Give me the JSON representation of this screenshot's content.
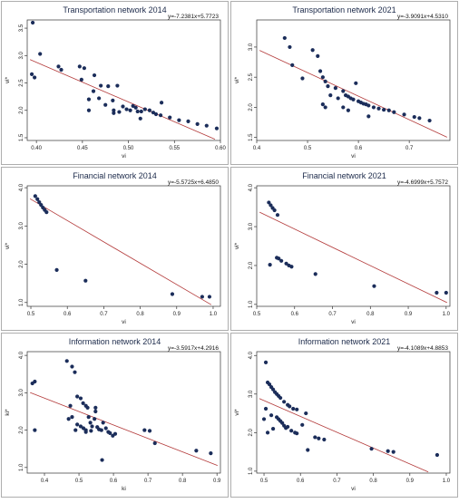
{
  "chart_data": [
    {
      "type": "scatter",
      "title": "Transportation network 2014",
      "equation": "y=-7.2381x+5.7723",
      "xlabel": "vi",
      "ylabel": "vi*",
      "xlim": [
        0.39,
        0.6
      ],
      "ylim": [
        1.45,
        3.65
      ],
      "xticks": [
        "0.40",
        "0.45",
        "0.50",
        "0.55",
        "0.60"
      ],
      "yticks": [
        "1.5",
        "2.0",
        "2.5",
        "3.0",
        "3.5"
      ],
      "fit": {
        "slope": -7.2381,
        "intercept": 5.7723
      },
      "points": [
        [
          0.396,
          3.6
        ],
        [
          0.404,
          3.03
        ],
        [
          0.395,
          2.66
        ],
        [
          0.398,
          2.6
        ],
        [
          0.424,
          2.8
        ],
        [
          0.427,
          2.74
        ],
        [
          0.447,
          2.8
        ],
        [
          0.452,
          2.77
        ],
        [
          0.449,
          2.56
        ],
        [
          0.463,
          2.64
        ],
        [
          0.47,
          2.45
        ],
        [
          0.478,
          2.44
        ],
        [
          0.462,
          2.35
        ],
        [
          0.457,
          2.2
        ],
        [
          0.468,
          2.22
        ],
        [
          0.475,
          2.1
        ],
        [
          0.483,
          2.18
        ],
        [
          0.488,
          2.45
        ],
        [
          0.484,
          2.0
        ],
        [
          0.484,
          1.95
        ],
        [
          0.494,
          2.07
        ],
        [
          0.498,
          2.02
        ],
        [
          0.502,
          2.0
        ],
        [
          0.49,
          1.97
        ],
        [
          0.505,
          2.08
        ],
        [
          0.508,
          2.05
        ],
        [
          0.51,
          1.98
        ],
        [
          0.514,
          1.98
        ],
        [
          0.518,
          2.02
        ],
        [
          0.513,
          1.85
        ],
        [
          0.523,
          2.0
        ],
        [
          0.527,
          1.96
        ],
        [
          0.53,
          1.93
        ],
        [
          0.536,
          2.14
        ],
        [
          0.535,
          1.91
        ],
        [
          0.545,
          1.87
        ],
        [
          0.555,
          1.82
        ],
        [
          0.565,
          1.8
        ],
        [
          0.575,
          1.75
        ],
        [
          0.585,
          1.72
        ],
        [
          0.457,
          2.0
        ],
        [
          0.596,
          1.67
        ]
      ]
    },
    {
      "type": "scatter",
      "title": "Transportation network 2021",
      "equation": "y=-3.9091x+4.5310",
      "xlabel": "vi",
      "ylabel": "vi*",
      "xlim": [
        0.4,
        0.78
      ],
      "ylim": [
        1.45,
        3.45
      ],
      "xticks": [
        "0.4",
        "0.5",
        "0.6",
        "0.7"
      ],
      "yticks": [
        "1.5",
        "2.0",
        "2.5",
        "3.0"
      ],
      "fit": {
        "slope": -3.9091,
        "intercept": 4.531
      },
      "points": [
        [
          0.455,
          3.15
        ],
        [
          0.465,
          3.0
        ],
        [
          0.49,
          2.48
        ],
        [
          0.51,
          2.95
        ],
        [
          0.52,
          2.85
        ],
        [
          0.525,
          2.6
        ],
        [
          0.53,
          2.5
        ],
        [
          0.535,
          2.43
        ],
        [
          0.54,
          2.35
        ],
        [
          0.545,
          2.2
        ],
        [
          0.555,
          2.32
        ],
        [
          0.56,
          2.15
        ],
        [
          0.57,
          2.27
        ],
        [
          0.575,
          2.2
        ],
        [
          0.58,
          2.18
        ],
        [
          0.585,
          2.15
        ],
        [
          0.59,
          2.13
        ],
        [
          0.595,
          2.4
        ],
        [
          0.6,
          2.1
        ],
        [
          0.605,
          2.08
        ],
        [
          0.61,
          2.06
        ],
        [
          0.615,
          2.05
        ],
        [
          0.62,
          2.03
        ],
        [
          0.63,
          2.0
        ],
        [
          0.64,
          1.98
        ],
        [
          0.65,
          1.96
        ],
        [
          0.66,
          1.95
        ],
        [
          0.67,
          1.92
        ],
        [
          0.69,
          1.88
        ],
        [
          0.71,
          1.84
        ],
        [
          0.72,
          1.82
        ],
        [
          0.74,
          1.78
        ],
        [
          0.53,
          2.05
        ],
        [
          0.535,
          2.0
        ],
        [
          0.57,
          2.0
        ],
        [
          0.58,
          1.95
        ],
        [
          0.62,
          1.85
        ],
        [
          0.47,
          2.7
        ]
      ]
    },
    {
      "type": "scatter",
      "title": "Financial network 2014",
      "equation": "y=-5.5725x+6.4850",
      "xlabel": "vi",
      "ylabel": "vi*",
      "xlim": [
        0.49,
        1.02
      ],
      "ylim": [
        0.9,
        4.05
      ],
      "xticks": [
        "0.5",
        "0.6",
        "0.7",
        "0.8",
        "0.9",
        "1.0"
      ],
      "yticks": [
        "1.0",
        "2.0",
        "3.0",
        "4.0"
      ],
      "fit": {
        "slope": -5.5725,
        "intercept": 6.485
      },
      "points": [
        [
          0.512,
          3.78
        ],
        [
          0.518,
          3.7
        ],
        [
          0.523,
          3.62
        ],
        [
          0.528,
          3.55
        ],
        [
          0.533,
          3.48
        ],
        [
          0.538,
          3.42
        ],
        [
          0.543,
          3.36
        ],
        [
          0.571,
          1.85
        ],
        [
          0.65,
          1.57
        ],
        [
          0.888,
          1.22
        ],
        [
          0.97,
          1.15
        ],
        [
          0.99,
          1.15
        ]
      ]
    },
    {
      "type": "scatter",
      "title": "Financial network 2021",
      "equation": "y=-4.6999x+5.7572",
      "xlabel": "vi",
      "ylabel": "vi*",
      "xlim": [
        0.5,
        1.01
      ],
      "ylim": [
        0.95,
        4.05
      ],
      "xticks": [
        "0.5",
        "0.6",
        "0.7",
        "0.8",
        "0.9",
        "1.0"
      ],
      "yticks": [
        "1.0",
        "2.0",
        "3.0",
        "4.0"
      ],
      "fit": {
        "slope": -4.6999,
        "intercept": 5.7572
      },
      "points": [
        [
          0.532,
          3.62
        ],
        [
          0.537,
          3.55
        ],
        [
          0.542,
          3.48
        ],
        [
          0.547,
          3.42
        ],
        [
          0.555,
          3.3
        ],
        [
          0.535,
          2.02
        ],
        [
          0.553,
          2.2
        ],
        [
          0.558,
          2.18
        ],
        [
          0.565,
          2.12
        ],
        [
          0.578,
          2.05
        ],
        [
          0.585,
          2.0
        ],
        [
          0.592,
          1.97
        ],
        [
          0.655,
          1.78
        ],
        [
          0.81,
          1.47
        ],
        [
          0.975,
          1.3
        ],
        [
          1.0,
          1.3
        ]
      ]
    },
    {
      "type": "scatter",
      "title": "Information network 2014",
      "equation": "y=-3.5917x+4.2916",
      "xlabel": "ki",
      "ylabel": "ki*",
      "xlim": [
        0.35,
        0.91
      ],
      "ylim": [
        0.85,
        4.1
      ],
      "xticks": [
        "0.4",
        "0.5",
        "0.6",
        "0.7",
        "0.8",
        "0.9"
      ],
      "yticks": [
        "1.0",
        "2.0",
        "3.0",
        "4.0"
      ],
      "fit": {
        "slope": -3.5917,
        "intercept": 4.2916
      },
      "points": [
        [
          0.365,
          3.25
        ],
        [
          0.372,
          3.3
        ],
        [
          0.372,
          2.0
        ],
        [
          0.465,
          3.85
        ],
        [
          0.48,
          3.7
        ],
        [
          0.488,
          3.55
        ],
        [
          0.495,
          2.9
        ],
        [
          0.505,
          2.85
        ],
        [
          0.512,
          2.72
        ],
        [
          0.52,
          2.65
        ],
        [
          0.525,
          2.6
        ],
        [
          0.475,
          2.65
        ],
        [
          0.47,
          2.3
        ],
        [
          0.48,
          2.35
        ],
        [
          0.495,
          2.15
        ],
        [
          0.505,
          2.1
        ],
        [
          0.513,
          2.05
        ],
        [
          0.52,
          2.0
        ],
        [
          0.528,
          2.35
        ],
        [
          0.533,
          2.2
        ],
        [
          0.538,
          2.1
        ],
        [
          0.545,
          2.3
        ],
        [
          0.548,
          2.5
        ],
        [
          0.553,
          2.08
        ],
        [
          0.558,
          2.02
        ],
        [
          0.565,
          2.0
        ],
        [
          0.57,
          2.2
        ],
        [
          0.578,
          2.05
        ],
        [
          0.585,
          1.95
        ],
        [
          0.59,
          1.92
        ],
        [
          0.598,
          1.85
        ],
        [
          0.605,
          1.9
        ],
        [
          0.49,
          2.0
        ],
        [
          0.52,
          1.95
        ],
        [
          0.535,
          1.98
        ],
        [
          0.567,
          1.2
        ],
        [
          0.69,
          2.0
        ],
        [
          0.705,
          1.98
        ],
        [
          0.72,
          1.65
        ],
        [
          0.84,
          1.45
        ],
        [
          0.882,
          1.38
        ],
        [
          0.548,
          2.6
        ]
      ]
    },
    {
      "type": "scatter",
      "title": "Information network 2021",
      "equation": "y=-4.1089x+4.8853",
      "xlabel": "vi",
      "ylabel": "vi*",
      "xlim": [
        0.48,
        1.01
      ],
      "ylim": [
        0.95,
        4.1
      ],
      "xticks": [
        "0.5",
        "0.6",
        "0.7",
        "0.8",
        "0.9",
        "1.0"
      ],
      "yticks": [
        "1.0",
        "2.0",
        "3.0",
        "4.0"
      ],
      "fit": {
        "slope": -4.1089,
        "intercept": 4.8853
      },
      "points": [
        [
          0.505,
          3.82
        ],
        [
          0.51,
          3.3
        ],
        [
          0.515,
          3.25
        ],
        [
          0.52,
          3.18
        ],
        [
          0.525,
          3.12
        ],
        [
          0.53,
          3.05
        ],
        [
          0.535,
          3.0
        ],
        [
          0.54,
          2.95
        ],
        [
          0.545,
          2.9
        ],
        [
          0.555,
          2.8
        ],
        [
          0.565,
          2.72
        ],
        [
          0.57,
          2.68
        ],
        [
          0.58,
          2.62
        ],
        [
          0.59,
          2.6
        ],
        [
          0.505,
          2.62
        ],
        [
          0.51,
          2.0
        ],
        [
          0.5,
          2.35
        ],
        [
          0.52,
          2.45
        ],
        [
          0.525,
          2.1
        ],
        [
          0.535,
          2.4
        ],
        [
          0.54,
          2.35
        ],
        [
          0.545,
          2.3
        ],
        [
          0.55,
          2.25
        ],
        [
          0.555,
          2.18
        ],
        [
          0.56,
          2.12
        ],
        [
          0.565,
          2.15
        ],
        [
          0.575,
          2.05
        ],
        [
          0.585,
          2.0
        ],
        [
          0.59,
          1.98
        ],
        [
          0.605,
          2.2
        ],
        [
          0.615,
          2.5
        ],
        [
          0.62,
          1.55
        ],
        [
          0.64,
          1.88
        ],
        [
          0.65,
          1.85
        ],
        [
          0.665,
          1.82
        ],
        [
          0.795,
          1.58
        ],
        [
          0.84,
          1.52
        ],
        [
          0.855,
          1.5
        ],
        [
          0.975,
          1.42
        ]
      ]
    }
  ]
}
